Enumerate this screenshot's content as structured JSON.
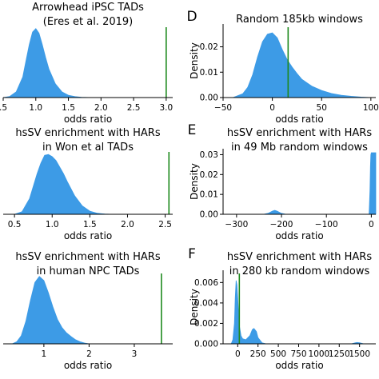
{
  "colors": {
    "fill": "#3d9be6",
    "line": "#1f8a1f",
    "axis": "#000000"
  },
  "chart_data": [
    {
      "type": "area",
      "panel_letter": "",
      "title": [
        "Arrowhead iPSC TADs",
        "(Eres et al. 2019)"
      ],
      "xlabel": "odds ratio",
      "ylabel": "",
      "xlim": [
        0.5,
        3.1
      ],
      "ylim": [
        0,
        3.2
      ],
      "xticks": [
        0.5,
        1.0,
        1.5,
        2.0,
        2.5,
        3.0
      ],
      "xtick_labels": [
        ".5",
        "1.0",
        "1.5",
        "2.0",
        "2.5",
        "3.0"
      ],
      "yticks": [],
      "ytick_labels": [],
      "observed_line_x": 3.0,
      "density": {
        "x": [
          0.5,
          0.6,
          0.7,
          0.8,
          0.85,
          0.9,
          0.95,
          1.0,
          1.05,
          1.1,
          1.15,
          1.2,
          1.3,
          1.4,
          1.5,
          1.6,
          1.7,
          1.8,
          1.9
        ],
        "y": [
          0.0,
          0.05,
          0.25,
          0.9,
          1.6,
          2.3,
          2.85,
          3.0,
          2.8,
          2.3,
          1.75,
          1.25,
          0.6,
          0.25,
          0.1,
          0.04,
          0.01,
          0.004,
          0.0
        ]
      }
    },
    {
      "type": "area",
      "panel_letter": "D",
      "title": [
        "Random 185kb windows"
      ],
      "xlabel": "odds ratio",
      "ylabel": "Density",
      "xlim": [
        -50,
        105
      ],
      "ylim": [
        0,
        0.029
      ],
      "xticks": [
        -50,
        0,
        50,
        100
      ],
      "xtick_labels": [
        "−50",
        "0",
        "50",
        "100"
      ],
      "yticks": [
        0.0,
        0.01,
        0.02
      ],
      "ytick_labels": [
        "0.00",
        "0.01",
        "0.02"
      ],
      "observed_line_x": 16,
      "density": {
        "x": [
          -40,
          -30,
          -25,
          -20,
          -15,
          -10,
          -5,
          0,
          5,
          10,
          15,
          20,
          25,
          30,
          40,
          50,
          60,
          70,
          80,
          90,
          100
        ],
        "y": [
          0.0,
          0.0015,
          0.004,
          0.009,
          0.016,
          0.022,
          0.025,
          0.0255,
          0.0235,
          0.019,
          0.015,
          0.012,
          0.0095,
          0.0072,
          0.0045,
          0.0028,
          0.0016,
          0.0009,
          0.0005,
          0.0002,
          0.0
        ]
      }
    },
    {
      "type": "area",
      "panel_letter": "",
      "title": [
        "hsSV enrichment with HARs",
        "in Won et al TADs"
      ],
      "xlabel": "odds ratio",
      "ylabel": "",
      "xlim": [
        0.35,
        2.6
      ],
      "ylim": [
        0,
        2.5
      ],
      "xticks": [
        0.5,
        1.0,
        1.5,
        2.0,
        2.5
      ],
      "xtick_labels": [
        "0.5",
        "1.0",
        "1.5",
        "2.0",
        "2.5"
      ],
      "yticks": [],
      "ytick_labels": [],
      "observed_line_x": 2.55,
      "density": {
        "x": [
          0.5,
          0.6,
          0.7,
          0.8,
          0.85,
          0.9,
          0.95,
          1.0,
          1.05,
          1.1,
          1.15,
          1.2,
          1.3,
          1.4,
          1.5,
          1.6,
          1.7,
          1.8
        ],
        "y": [
          0.0,
          0.1,
          0.6,
          1.55,
          1.95,
          2.25,
          2.28,
          2.2,
          2.05,
          1.8,
          1.55,
          1.25,
          0.7,
          0.32,
          0.12,
          0.04,
          0.01,
          0.0
        ]
      }
    },
    {
      "type": "area",
      "panel_letter": "E",
      "title": [
        "hsSV enrichment with HARs",
        "in 49 Mb random windows"
      ],
      "xlabel": "odds ratio",
      "ylabel": "Density",
      "xlim": [
        -330,
        10
      ],
      "ylim": [
        0,
        0.033
      ],
      "xticks": [
        -300,
        -200,
        -100,
        0
      ],
      "xtick_labels": [
        "−300",
        "−200",
        "−100",
        "0"
      ],
      "yticks": [
        0.0,
        0.01,
        0.02,
        0.03
      ],
      "ytick_labels": [
        "0.00",
        "0.01",
        "0.02",
        "0.03"
      ],
      "observed_line_x": null,
      "density": {
        "x": [
          -240,
          -230,
          -220,
          -215,
          -210,
          -200,
          -190,
          -5,
          -3,
          -2,
          -1,
          0,
          2,
          5,
          10
        ],
        "y": [
          0.0,
          0.0005,
          0.0016,
          0.002,
          0.0016,
          0.0005,
          0.0,
          0.0,
          0.012,
          0.024,
          0.03,
          0.031,
          0.031,
          0.031,
          0.031
        ]
      }
    },
    {
      "type": "area",
      "panel_letter": "",
      "title": [
        "hsSV enrichment with HARs",
        "in human NPC TADs"
      ],
      "xlabel": "odds ratio",
      "ylabel": "",
      "xlim": [
        0.1,
        3.85
      ],
      "ylim": [
        0,
        1.8
      ],
      "xticks": [
        1,
        2,
        3
      ],
      "xtick_labels": [
        "1",
        "2",
        "3"
      ],
      "yticks": [],
      "ytick_labels": [],
      "observed_line_x": 3.6,
      "density": {
        "x": [
          0.3,
          0.4,
          0.5,
          0.6,
          0.7,
          0.8,
          0.9,
          1.0,
          1.1,
          1.2,
          1.3,
          1.4,
          1.5,
          1.6,
          1.7,
          1.8,
          1.9,
          2.0
        ],
        "y": [
          0.0,
          0.05,
          0.2,
          0.55,
          1.05,
          1.5,
          1.65,
          1.55,
          1.25,
          0.9,
          0.6,
          0.4,
          0.27,
          0.18,
          0.1,
          0.05,
          0.02,
          0.0
        ]
      }
    },
    {
      "type": "area",
      "panel_letter": "F",
      "title": [
        "hsSV enrichment with HARs",
        "in 280 kb random windows"
      ],
      "xlabel": "odds ratio",
      "ylabel": "Density",
      "xlim": [
        -180,
        1700
      ],
      "ylim": [
        0,
        0.0072
      ],
      "xticks": [
        0,
        250,
        500,
        750,
        1000,
        1250,
        1500
      ],
      "xtick_labels": [
        "0",
        "250",
        "500",
        "750",
        "1000",
        "1250",
        "1500"
      ],
      "yticks": [
        0.0,
        0.002,
        0.004,
        0.006
      ],
      "ytick_labels": [
        "0.000",
        "0.002",
        "0.004",
        "0.006"
      ],
      "observed_line_x": 20,
      "density": {
        "x": [
          -80,
          -60,
          -40,
          -30,
          -20,
          -10,
          0,
          10,
          20,
          40,
          60,
          100,
          150,
          180,
          200,
          230,
          250,
          300,
          350,
          1400,
          1450,
          1470,
          1500,
          1550
        ],
        "y": [
          0.0,
          0.0004,
          0.002,
          0.0045,
          0.0062,
          0.0058,
          0.0045,
          0.003,
          0.0018,
          0.0008,
          0.0005,
          0.0004,
          0.0008,
          0.0014,
          0.0015,
          0.0012,
          0.0006,
          0.0001,
          0.0,
          0.0,
          0.0001,
          0.00013,
          0.0001,
          0.0
        ]
      }
    }
  ]
}
